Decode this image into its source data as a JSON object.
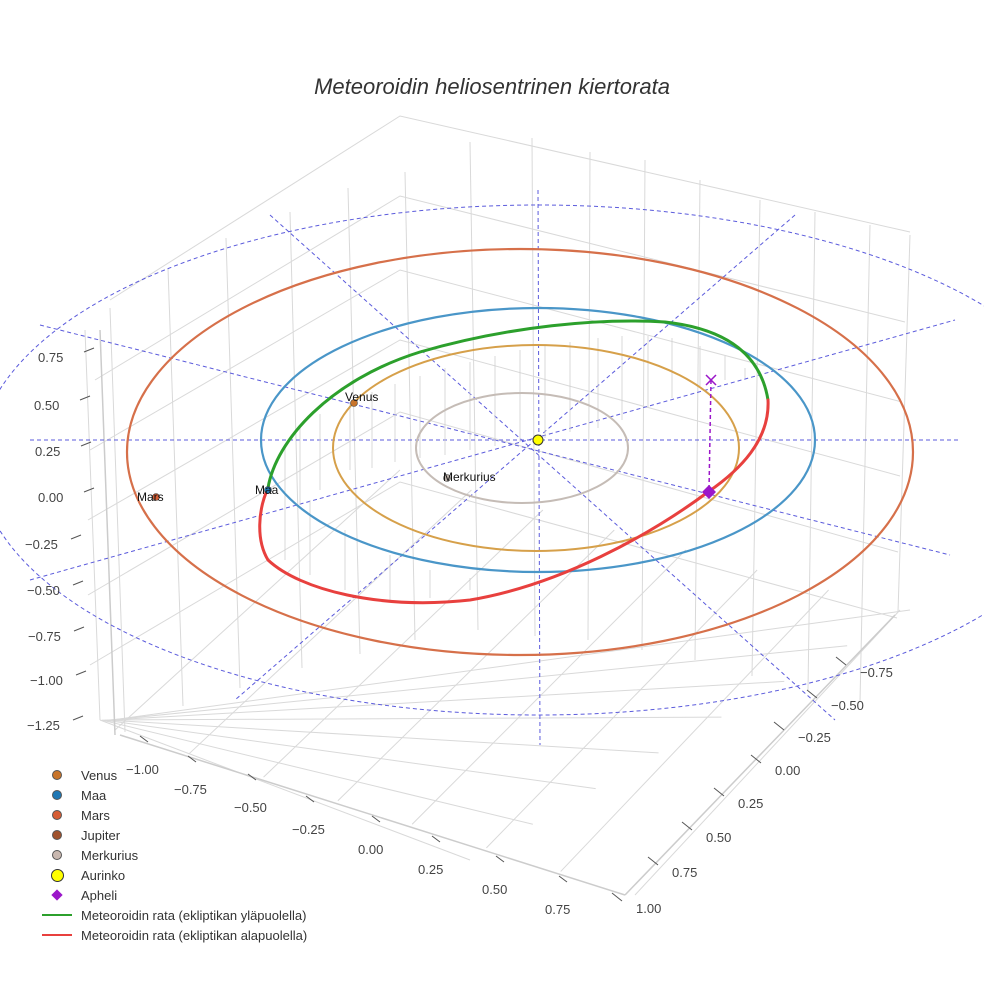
{
  "chart_data": {
    "type": "line3d",
    "title": "Meteoroidin heliosentrinen kiertorata",
    "z_ticks": [
      "0.75",
      "0.50",
      "0.25",
      "0.00",
      "−0.25",
      "−0.50",
      "−0.75",
      "−1.00",
      "−1.25"
    ],
    "x_ticks": [
      "−1.00",
      "−0.75",
      "−0.50",
      "−0.25",
      "0.00",
      "0.25",
      "0.50",
      "0.75"
    ],
    "y_ticks": [
      "−0.75",
      "−0.50",
      "−0.25",
      "0.00",
      "0.25",
      "0.50",
      "0.75",
      "1.00"
    ],
    "z_range": [
      -1.25,
      0.75
    ],
    "x_range": [
      -1.0,
      0.75
    ],
    "y_range": [
      -0.75,
      1.0
    ],
    "planets": [
      {
        "name": "Venus",
        "label": "Venus",
        "color": "#c8742a",
        "orbit_color": "#d6a04a",
        "orbit_radius_au": 0.72
      },
      {
        "name": "Maa",
        "label": "Maa",
        "color": "#1f77b4",
        "orbit_color": "#4a96c8",
        "orbit_radius_au": 1.0
      },
      {
        "name": "Mars",
        "label": "Mars",
        "color": "#d65d34",
        "orbit_color": "#d6704a",
        "orbit_radius_au": 1.52
      },
      {
        "name": "Merkurius",
        "label": "Merkurius",
        "color": "#bbb0a8",
        "orbit_color": "#c5bcb6",
        "orbit_radius_au": 0.39
      }
    ],
    "meteoroid": {
      "above_ecliptic_color": "#2ca02c",
      "below_ecliptic_color": "#e8403e",
      "aphelion_color": "#9b17c9"
    },
    "legend": [
      {
        "label": "Venus",
        "symbol": "dot",
        "color": "#c8742a"
      },
      {
        "label": "Maa",
        "symbol": "dot",
        "color": "#1f77b4"
      },
      {
        "label": "Mars",
        "symbol": "dot",
        "color": "#d65d34"
      },
      {
        "label": "Jupiter",
        "symbol": "dot",
        "color": "#a0522d"
      },
      {
        "label": "Merkurius",
        "symbol": "dot",
        "color": "#c9b8b0"
      },
      {
        "label": "Aurinko",
        "symbol": "sun",
        "color": "#ffff00"
      },
      {
        "label": "Apheli",
        "symbol": "diamond",
        "color": "#9b17c9"
      },
      {
        "label": "Meteoroidin rata (ekliptikan yläpuolella)",
        "symbol": "line",
        "color": "#2ca02c"
      },
      {
        "label": "Meteoroidin rata (ekliptikan alapuolella)",
        "symbol": "line",
        "color": "#e8403e"
      }
    ]
  }
}
